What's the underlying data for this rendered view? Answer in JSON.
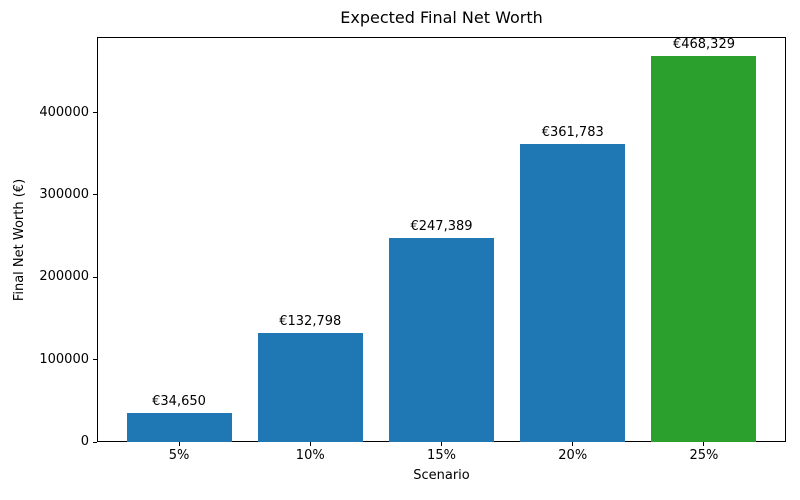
{
  "chart_data": {
    "type": "bar",
    "title": "Expected Final Net Worth",
    "xlabel": "Scenario",
    "ylabel": "Final Net Worth (€)",
    "categories": [
      "5%",
      "10%",
      "15%",
      "20%",
      "25%"
    ],
    "values": [
      34650,
      132798,
      247389,
      361783,
      468329
    ],
    "bar_labels": [
      "€34,650",
      "€132,798",
      "€247,389",
      "€361,783",
      "€468,329"
    ],
    "bar_colors": [
      "#1f77b4",
      "#1f77b4",
      "#1f77b4",
      "#1f77b4",
      "#2ca02c"
    ],
    "yticks": [
      0,
      100000,
      200000,
      300000,
      400000
    ],
    "ytick_labels": [
      "0",
      "100000",
      "200000",
      "300000",
      "400000"
    ],
    "ylim": [
      0,
      491745
    ],
    "grid": false,
    "legend_position": "none",
    "colors": {
      "bar_blue": "#1f77b4",
      "bar_green": "#2ca02c",
      "axis": "#000000",
      "background": "#ffffff"
    }
  }
}
